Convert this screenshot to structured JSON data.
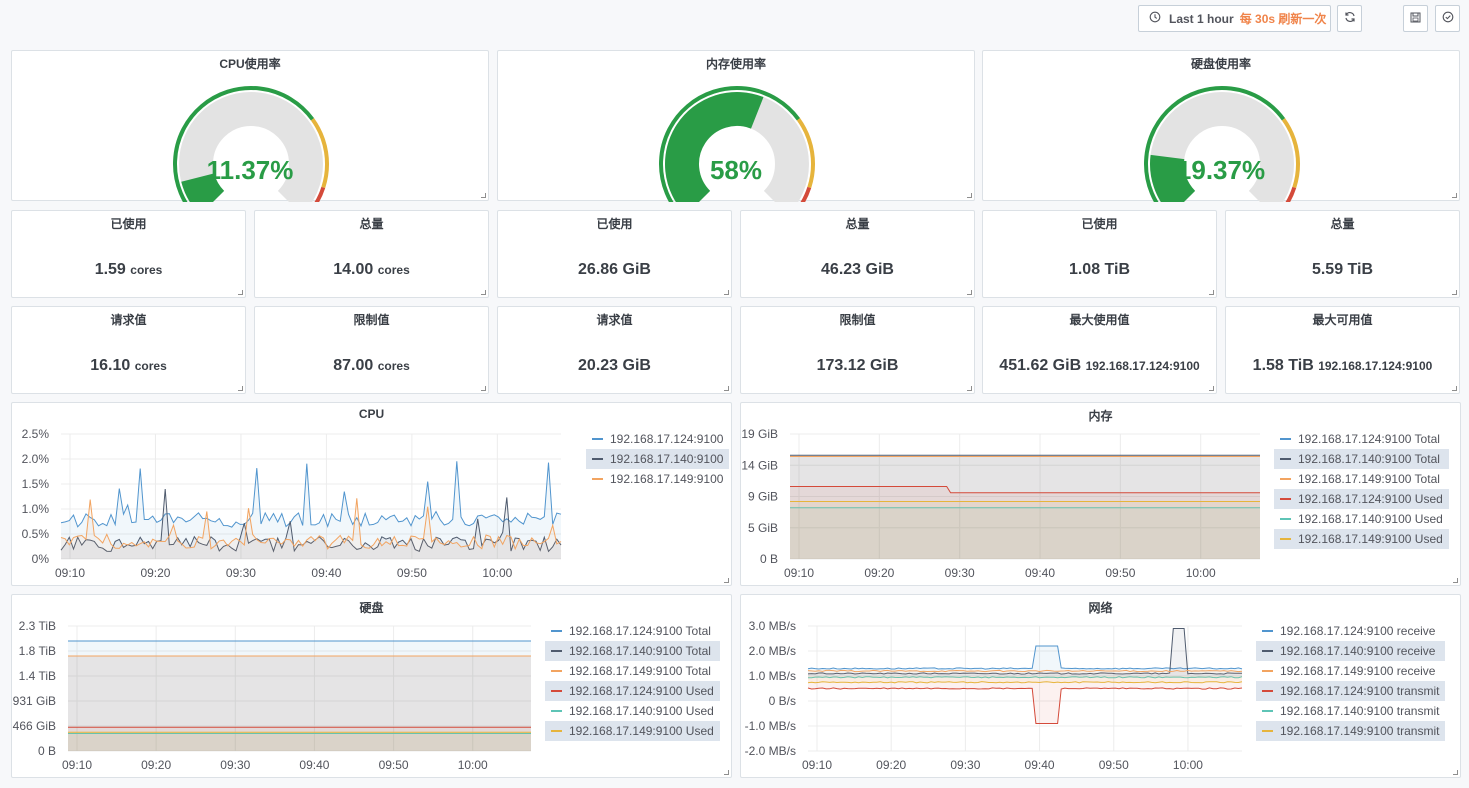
{
  "toolbar": {
    "time_range": "Last 1 hour",
    "refresh": "每 30s 刷新一次"
  },
  "colors": {
    "green": "#299c46",
    "orange": "#e6b43c",
    "red": "#d44a3a",
    "gauge_bg": "#e3e3e3"
  },
  "gauges": [
    {
      "title": "CPU使用率",
      "value": "11.37%",
      "percent": 11.37
    },
    {
      "title": "内存使用率",
      "value": "58%",
      "percent": 58
    },
    {
      "title": "硬盘使用率",
      "value": "19.37%",
      "percent": 19.37
    }
  ],
  "stats_row1": [
    {
      "title": "已使用",
      "value": "1.59",
      "unit": "cores",
      "inst": ""
    },
    {
      "title": "总量",
      "value": "14.00",
      "unit": "cores",
      "inst": ""
    },
    {
      "title": "已使用",
      "value": "26.86 GiB",
      "unit": "",
      "inst": ""
    },
    {
      "title": "总量",
      "value": "46.23 GiB",
      "unit": "",
      "inst": ""
    },
    {
      "title": "已使用",
      "value": "1.08 TiB",
      "unit": "",
      "inst": ""
    },
    {
      "title": "总量",
      "value": "5.59 TiB",
      "unit": "",
      "inst": ""
    }
  ],
  "stats_row2": [
    {
      "title": "请求值",
      "value": "16.10",
      "unit": "cores",
      "inst": ""
    },
    {
      "title": "限制值",
      "value": "87.00",
      "unit": "cores",
      "inst": ""
    },
    {
      "title": "请求值",
      "value": "20.23 GiB",
      "unit": "",
      "inst": ""
    },
    {
      "title": "限制值",
      "value": "173.12 GiB",
      "unit": "",
      "inst": ""
    },
    {
      "title": "最大使用值",
      "value": "451.62 GiB",
      "unit": "",
      "inst": "192.168.17.124:9100"
    },
    {
      "title": "最大可用值",
      "value": "1.58 TiB",
      "unit": "",
      "inst": "192.168.17.124:9100"
    }
  ],
  "charts": {
    "cpu": {
      "title": "CPU",
      "yticks": [
        "2.5%",
        "2.0%",
        "1.5%",
        "1.0%",
        "0.5%",
        "0%"
      ],
      "xticks": [
        "09:10",
        "09:20",
        "09:30",
        "09:40",
        "09:50",
        "10:00"
      ],
      "legend": [
        {
          "label": "192.168.17.124:9100",
          "color": "#5195ce",
          "hl": false
        },
        {
          "label": "192.168.17.140:9100",
          "color": "#4f5b6e",
          "hl": true
        },
        {
          "label": "192.168.17.149:9100",
          "color": "#f2a461",
          "hl": false
        }
      ]
    },
    "mem": {
      "title": "内存",
      "yticks": [
        "19 GiB",
        "14 GiB",
        "9 GiB",
        "5 GiB",
        "0 B"
      ],
      "xticks": [
        "09:10",
        "09:20",
        "09:30",
        "09:40",
        "09:50",
        "10:00"
      ],
      "legend": [
        {
          "label": "192.168.17.124:9100 Total",
          "color": "#5195ce",
          "hl": false
        },
        {
          "label": "192.168.17.140:9100 Total",
          "color": "#4f5b6e",
          "hl": true
        },
        {
          "label": "192.168.17.149:9100 Total",
          "color": "#f2a461",
          "hl": false
        },
        {
          "label": "192.168.17.124:9100 Used",
          "color": "#d44a3a",
          "hl": true
        },
        {
          "label": "192.168.17.140:9100 Used",
          "color": "#5ec4b6",
          "hl": false
        },
        {
          "label": "192.168.17.149:9100 Used",
          "color": "#e6b43c",
          "hl": true
        }
      ]
    },
    "disk": {
      "title": "硬盘",
      "yticks": [
        "2.3 TiB",
        "1.8 TiB",
        "1.4 TiB",
        "931 GiB",
        "466 GiB",
        "0 B"
      ],
      "xticks": [
        "09:10",
        "09:20",
        "09:30",
        "09:40",
        "09:50",
        "10:00"
      ],
      "legend": [
        {
          "label": "192.168.17.124:9100 Total",
          "color": "#5195ce",
          "hl": false
        },
        {
          "label": "192.168.17.140:9100 Total",
          "color": "#4f5b6e",
          "hl": true
        },
        {
          "label": "192.168.17.149:9100 Total",
          "color": "#f2a461",
          "hl": false
        },
        {
          "label": "192.168.17.124:9100 Used",
          "color": "#d44a3a",
          "hl": true
        },
        {
          "label": "192.168.17.140:9100 Used",
          "color": "#5ec4b6",
          "hl": false
        },
        {
          "label": "192.168.17.149:9100 Used",
          "color": "#e6b43c",
          "hl": true
        }
      ]
    },
    "net": {
      "title": "网络",
      "yticks": [
        "3.0 MB/s",
        "2.0 MB/s",
        "1.0 MB/s",
        "0 B/s",
        "-1.0 MB/s",
        "-2.0 MB/s"
      ],
      "xticks": [
        "09:10",
        "09:20",
        "09:30",
        "09:40",
        "09:50",
        "10:00"
      ],
      "legend": [
        {
          "label": "192.168.17.124:9100 receive",
          "color": "#5195ce",
          "hl": false
        },
        {
          "label": "192.168.17.140:9100 receive",
          "color": "#4f5b6e",
          "hl": true
        },
        {
          "label": "192.168.17.149:9100 receive",
          "color": "#f2a461",
          "hl": false
        },
        {
          "label": "192.168.17.124:9100 transmit",
          "color": "#d44a3a",
          "hl": true
        },
        {
          "label": "192.168.17.140:9100 transmit",
          "color": "#5ec4b6",
          "hl": false
        },
        {
          "label": "192.168.17.149:9100 transmit",
          "color": "#e6b43c",
          "hl": true
        }
      ]
    }
  }
}
